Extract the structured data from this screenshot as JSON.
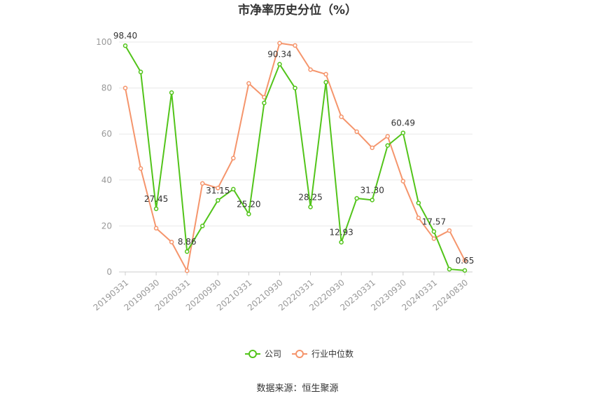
{
  "chart_data": {
    "type": "line",
    "title": "市净率历史分位（%）",
    "ylim": [
      0,
      100
    ],
    "y_ticks": [
      0,
      20,
      40,
      60,
      80,
      100
    ],
    "x_tick_labels": [
      "20190331",
      "20190930",
      "20200331",
      "20200930",
      "20210331",
      "20210930",
      "20220331",
      "20220930",
      "20230331",
      "20230930",
      "20240331",
      "20240830"
    ],
    "x_tick_indices": [
      0,
      2,
      4,
      6,
      8,
      10,
      12,
      14,
      16,
      18,
      20,
      22
    ],
    "grid": true,
    "legend_position": "bottom",
    "series": [
      {
        "name": "公司",
        "color": "#52c41a",
        "values": [
          98.4,
          87.0,
          27.45,
          78.0,
          8.86,
          20.0,
          31.15,
          36.0,
          25.2,
          73.5,
          90.34,
          80.0,
          28.25,
          82.5,
          12.93,
          32.0,
          31.3,
          55.0,
          60.49,
          30.0,
          17.57,
          1.2,
          0.65
        ],
        "labels": {
          "0": "98.40",
          "2": "27.45",
          "4": "8.86",
          "6": "31.15",
          "8": "25.20",
          "10": "90.34",
          "12": "28.25",
          "14": "12.93",
          "16": "31.30",
          "18": "60.49",
          "20": "17.57",
          "22": "0.65"
        }
      },
      {
        "name": "行业中位数",
        "color": "#f5956c",
        "values": [
          80.0,
          45.0,
          19.0,
          13.0,
          0.5,
          38.5,
          36.5,
          49.5,
          82.0,
          76.0,
          99.5,
          98.5,
          88.0,
          86.0,
          67.5,
          61.0,
          54.0,
          59.0,
          39.5,
          23.5,
          14.5,
          18.0,
          5.0
        ]
      }
    ]
  },
  "source_text": "数据来源：恒生聚源"
}
